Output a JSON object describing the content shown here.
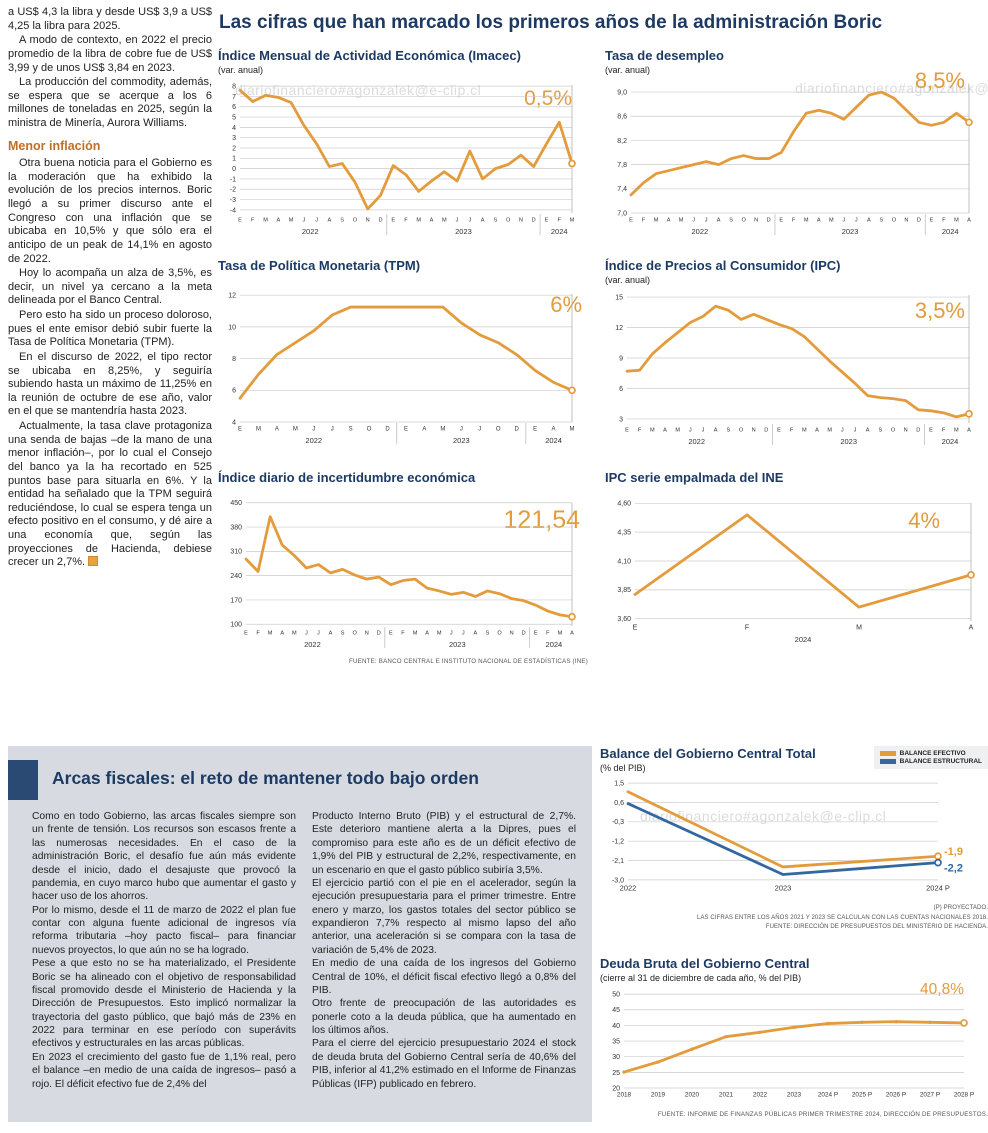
{
  "page": {
    "main_title": "Las cifras que han marcado los primeros años de la administración Boric",
    "watermark": "diariofinanciero#agonzalek@e-clip.cl"
  },
  "colors": {
    "accent_orange": "#E39B3C",
    "accent_blue": "#33679F",
    "navy": "#1C3A63"
  },
  "left_column": {
    "paragraphs": [
      "a US$ 4,3 la libra y desde US$ 3,9 a US$ 4,25 la libra para 2025.",
      "A modo de contexto, en 2022 el precio promedio de la libra de cobre fue de US$ 3,99 y de unos US$ 3,84 en 2023.",
      "La producción del commodity, además, se espera que se acerque a los 6 millones de toneladas en 2025, según la ministra de Minería, Aurora Williams."
    ],
    "heading": "Menor inflación",
    "paragraphs2": [
      "Otra buena noticia para el Gobierno es la moderación que ha exhibido la evolución de los precios internos. Boric llegó a su primer discurso ante el Congreso con una inflación que se ubicaba en 10,5% y que sólo era el anticipo de un peak de 14,1% en agosto de 2022.",
      "Hoy lo acompaña un alza de 3,5%, es decir, un nivel ya cercano a la meta delineada por el Banco Central.",
      "Pero esto ha sido un proceso doloroso, pues el ente emisor debió subir fuerte la Tasa de Política Monetaria (TPM).",
      "En el discurso de 2022, el tipo rector se ubicaba en 8,25%, y seguiría subiendo hasta un máximo de 11,25% en la reunión de octubre de ese año, valor en el que se mantendría hasta 2023.",
      "Actualmente, la tasa clave protagoniza una senda de bajas –de la mano de una menor inflación–, por lo cual el Consejo del banco ya la ha recortado en 525 puntos base para situarla en 6%. Y la entidad ha señalado que la TPM seguirá reduciéndose, lo cual se espera tenga un efecto positivo en el consumo, y dé aire a una economía que, según las proyecciones de Hacienda, debiese crecer un 2,7%."
    ]
  },
  "bottom": {
    "title": "Arcas fiscales: el reto de mantener todo bajo orden",
    "col1": [
      "Como en todo Gobierno, las arcas fiscales siempre son un frente de tensión. Los recursos son escasos frente a las numerosas necesidades. En el caso de la administración Boric, el desafío fue aún más evidente desde el inicio, dado el desajuste que provocó la pandemia, en cuyo marco hubo que aumentar el gasto y hacer uso de los ahorros.",
      "Por lo mismo, desde el 11 de marzo de 2022 el plan fue contar con alguna fuente adicional de ingresos vía reforma tributaria –hoy pacto fiscal– para financiar nuevos proyectos, lo que aún no se ha logrado.",
      "Pese a que esto no se ha materializado, el Presidente Boric se ha alineado con el objetivo de responsabilidad fiscal promovido desde el Ministerio de Hacienda y la Dirección de Presupuestos. Esto implicó normalizar la trayectoria del gasto público, que bajó más de 23% en 2022 para terminar en ese período con superávits efectivos y estructurales en las arcas públicas.",
      "En 2023 el crecimiento del gasto fue de 1,1% real, pero el balance –en medio de una caída de ingresos– pasó a rojo. El déficit efectivo fue de 2,4% del"
    ],
    "col2": [
      "Producto Interno Bruto (PIB) y el estructural de 2,7%. Este deterioro mantiene alerta a la Dipres, pues el compromiso para este año es de un déficit efectivo de 1,9% del PIB y estructural de 2,2%, respectivamente, en un escenario en que el gasto público subiría 3,5%.",
      "El ejercicio partió con el pie en el acelerador, según la ejecución presupuestaria para el primer trimestre. Entre enero y marzo, los gastos totales del sector público se expandieron 7,7% respecto al mismo lapso del año anterior, una aceleración si se compara con la tasa de variación de 5,4% de 2023.",
      "En medio de una caída de los ingresos del Gobierno Central de 10%, el déficit fiscal efectivo llegó a 0,8% del PIB.",
      "Otro frente de preocupación de las autoridades es ponerle coto a la deuda pública, que ha aumentado en los últimos años.",
      "Para el cierre del ejercicio presupuestario 2024 el stock de deuda bruta del Gobierno Central sería de 40,6% del PIB, inferior al 41,2% estimado en el Informe de Finanzas Públicas (IFP) publicado en febrero."
    ]
  },
  "chart_data": [
    {
      "id": "imacec",
      "type": "line",
      "title": "Índice Mensual de Actividad Económica (Imacec)",
      "subtitle": "(var. anual)",
      "big_value": "0,5%",
      "color": "#E39B3C",
      "ylim": [
        -4.3,
        8.3
      ],
      "y_ticks": [
        8,
        7,
        6,
        5,
        4,
        3,
        2,
        1,
        0,
        -1,
        -2,
        -3,
        -4
      ],
      "y_tick_labels": [
        "8",
        "7",
        "6",
        "5",
        "4",
        "3",
        "2",
        "1",
        "0",
        "-1",
        "-2",
        "-3",
        "-4"
      ],
      "x_labels": [
        "E",
        "F",
        "M",
        "A",
        "M",
        "J",
        "J",
        "A",
        "S",
        "O",
        "N",
        "D",
        "E",
        "F",
        "M",
        "A",
        "M",
        "J",
        "J",
        "A",
        "S",
        "O",
        "N",
        "D",
        "E",
        "F",
        "M"
      ],
      "years": [
        {
          "label": "2022",
          "start": 0,
          "end": 11
        },
        {
          "label": "2023",
          "start": 12,
          "end": 23
        },
        {
          "label": "2024",
          "start": 24,
          "end": 26
        }
      ],
      "values": [
        7.6,
        6.5,
        7.1,
        6.9,
        6.4,
        4.2,
        2.4,
        0.2,
        0.5,
        -1.3,
        -3.9,
        -2.6,
        0.3,
        -0.6,
        -2.2,
        -1.2,
        -0.3,
        -1.2,
        1.7,
        -1.0,
        0.0,
        0.4,
        1.3,
        0.2,
        2.4,
        4.5,
        0.5
      ]
    },
    {
      "id": "desempleo",
      "type": "line",
      "title": "Tasa de desempleo",
      "subtitle": "(var. anual)",
      "big_value": "8,5%",
      "color": "#E39B3C",
      "ylim": [
        7.0,
        9.15
      ],
      "y_ticks": [
        9.0,
        8.6,
        8.2,
        7.8,
        7.4,
        7.0
      ],
      "y_tick_labels": [
        "9,0",
        "8,6",
        "8,2",
        "7,8",
        "7,4",
        "7,0"
      ],
      "x_labels": [
        "E",
        "F",
        "M",
        "A",
        "M",
        "J",
        "J",
        "A",
        "S",
        "O",
        "N",
        "D",
        "E",
        "F",
        "M",
        "A",
        "M",
        "J",
        "J",
        "A",
        "S",
        "O",
        "N",
        "D",
        "E",
        "F",
        "M",
        "A"
      ],
      "years": [
        {
          "label": "2022",
          "start": 0,
          "end": 11
        },
        {
          "label": "2023",
          "start": 12,
          "end": 23
        },
        {
          "label": "2024",
          "start": 24,
          "end": 27
        }
      ],
      "values": [
        7.3,
        7.5,
        7.65,
        7.7,
        7.75,
        7.8,
        7.85,
        7.8,
        7.9,
        7.95,
        7.9,
        7.9,
        8.0,
        8.35,
        8.65,
        8.7,
        8.65,
        8.55,
        8.75,
        8.95,
        9.0,
        8.9,
        8.7,
        8.5,
        8.45,
        8.5,
        8.65,
        8.5
      ]
    },
    {
      "id": "tpm",
      "type": "line",
      "title": "Tasa de Política Monetaria (TPM)",
      "big_value": "6%",
      "color": "#E39B3C",
      "ylim": [
        4,
        12.2
      ],
      "y_ticks": [
        12,
        10,
        8,
        6,
        4
      ],
      "y_tick_labels": [
        "12",
        "10",
        "8",
        "6",
        "4"
      ],
      "x_labels": [
        "E",
        "M",
        "A",
        "M",
        "J",
        "J",
        "S",
        "O",
        "D",
        "E",
        "A",
        "M",
        "J",
        "J",
        "O",
        "D",
        "E",
        "A",
        "M"
      ],
      "years": [
        {
          "label": "2022",
          "start": 0,
          "end": 8
        },
        {
          "label": "2023",
          "start": 9,
          "end": 15
        },
        {
          "label": "2024",
          "start": 16,
          "end": 18
        }
      ],
      "values": [
        5.5,
        7.0,
        8.25,
        9.0,
        9.75,
        10.75,
        11.25,
        11.25,
        11.25,
        11.25,
        11.25,
        11.25,
        10.25,
        9.5,
        9.0,
        8.25,
        7.25,
        6.5,
        6.0
      ]
    },
    {
      "id": "ipc",
      "type": "line",
      "title": "Índice de Precios al Consumidor (IPC)",
      "subtitle": "(var. anual)",
      "big_value": "3,5%",
      "color": "#E39B3C",
      "ylim": [
        2.6,
        15.4
      ],
      "y_ticks": [
        15,
        12,
        9,
        6,
        3
      ],
      "y_tick_labels": [
        "15",
        "12",
        "9",
        "6",
        "3"
      ],
      "x_labels": [
        "E",
        "F",
        "M",
        "A",
        "M",
        "J",
        "J",
        "A",
        "S",
        "O",
        "N",
        "D",
        "E",
        "F",
        "M",
        "A",
        "M",
        "J",
        "J",
        "A",
        "S",
        "O",
        "N",
        "D",
        "E",
        "F",
        "M",
        "A"
      ],
      "years": [
        {
          "label": "2022",
          "start": 0,
          "end": 11
        },
        {
          "label": "2023",
          "start": 12,
          "end": 23
        },
        {
          "label": "2024",
          "start": 24,
          "end": 27
        }
      ],
      "values": [
        7.7,
        7.8,
        9.4,
        10.5,
        11.5,
        12.5,
        13.1,
        14.1,
        13.7,
        12.8,
        13.3,
        12.8,
        12.3,
        11.9,
        11.1,
        9.9,
        8.7,
        7.6,
        6.5,
        5.3,
        5.1,
        5.0,
        4.8,
        3.9,
        3.8,
        3.6,
        3.2,
        3.5
      ]
    },
    {
      "id": "incertidumbre",
      "type": "line",
      "title": "Índice diario de incertidumbre económica",
      "big_value": "121,54",
      "source": "FUENTE: BANCO CENTRAL E INSTITUTO NACIONAL DE ESTADÍSTICAS (INE)",
      "color": "#E39B3C",
      "ylim": [
        95,
        455
      ],
      "y_ticks": [
        450,
        380,
        310,
        240,
        170,
        100
      ],
      "y_tick_labels": [
        "450",
        "380",
        "310",
        "240",
        "170",
        "100"
      ],
      "x_labels": [
        "E",
        "F",
        "M",
        "A",
        "M",
        "J",
        "J",
        "A",
        "S",
        "O",
        "N",
        "D",
        "E",
        "F",
        "M",
        "A",
        "M",
        "J",
        "J",
        "A",
        "S",
        "O",
        "N",
        "D",
        "E",
        "F",
        "M",
        "A"
      ],
      "years": [
        {
          "label": "2022",
          "start": 0,
          "end": 11
        },
        {
          "label": "2023",
          "start": 12,
          "end": 23
        },
        {
          "label": "2024",
          "start": 24,
          "end": 27
        }
      ],
      "values": [
        288,
        252,
        410,
        328,
        298,
        262,
        272,
        248,
        258,
        242,
        230,
        236,
        214,
        226,
        230,
        204,
        196,
        186,
        192,
        180,
        196,
        188,
        174,
        168,
        155,
        138,
        127,
        121.54
      ]
    },
    {
      "id": "ipc_ine",
      "type": "line",
      "title": "IPC serie empalmada del INE",
      "big_value": "4%",
      "color": "#E39B3C",
      "ylim": [
        3.58,
        4.62
      ],
      "y_ticks": [
        4.6,
        4.35,
        4.1,
        3.85,
        3.6
      ],
      "y_tick_labels": [
        "4,60",
        "4,35",
        "4,10",
        "3,85",
        "3,60"
      ],
      "x_labels": [
        "E",
        "F",
        "M",
        "A"
      ],
      "years": [
        {
          "label": "2024",
          "start": 0,
          "end": 3
        }
      ],
      "values": [
        3.81,
        4.5,
        3.7,
        3.98
      ]
    },
    {
      "id": "balance",
      "type": "line",
      "title": "Balance del Gobierno Central Total",
      "subtitle": "(% del PIB)",
      "ylim": [
        -3.1,
        1.6
      ],
      "y_ticks": [
        1.5,
        0.6,
        -0.3,
        -1.2,
        -2.1,
        -3.0
      ],
      "y_tick_labels": [
        "1,5",
        "0,6",
        "-0,3",
        "-1,2",
        "-2,1",
        "-3,0"
      ],
      "x_labels": [
        "2022",
        "2023",
        "2024 P"
      ],
      "series": [
        {
          "name": "BALANCE EFECTIVO",
          "color": "#E39B3C",
          "values": [
            1.1,
            -2.4,
            -1.9
          ],
          "end_label": "-1,9",
          "label_dy": -1
        },
        {
          "name": "BALANCE ESTRUCTURAL",
          "color": "#33679F",
          "values": [
            0.55,
            -2.75,
            -2.2
          ],
          "end_label": "-2,2",
          "label_dy": 9
        }
      ],
      "footnotes": [
        "(P) PROYECTADO.",
        "LAS CIFRAS ENTRE LOS AÑOS 2021 Y 2023 SE CALCULAN CON LAS CUENTAS NACIONALES 2018.",
        "FUENTE: DIRECCIÓN DE PRESUPUESTOS DEL MINISTERIO DE HACIENDA."
      ]
    },
    {
      "id": "deuda",
      "type": "line",
      "title": "Deuda Bruta del Gobierno Central",
      "subtitle": "(cierre al 31 de diciembre de cada año, % del PIB)",
      "big_value": "40,8%",
      "source": "FUENTE: INFORME DE FINANZAS PÚBLICAS PRIMER TRIMESTRE 2024, DIRECCIÓN DE PRESUPUESTOS.",
      "color": "#E39B3C",
      "ylim": [
        20,
        51
      ],
      "y_ticks": [
        50,
        45,
        40,
        35,
        30,
        25,
        20
      ],
      "y_tick_labels": [
        "50",
        "45",
        "40",
        "35",
        "30",
        "25",
        "20"
      ],
      "x_labels": [
        "2018",
        "2019",
        "2020",
        "2021",
        "2022",
        "2023",
        "2024 P",
        "2025 P",
        "2026 P",
        "2027 P",
        "2028 P"
      ],
      "values": [
        25.1,
        28.3,
        32.4,
        36.4,
        37.8,
        39.4,
        40.6,
        41.0,
        41.2,
        41.0,
        40.8
      ]
    }
  ]
}
